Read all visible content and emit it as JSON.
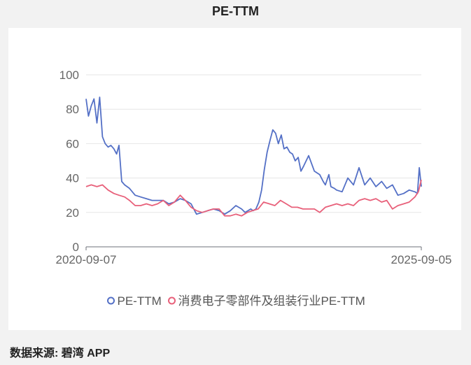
{
  "page": {
    "title": "PE-TTM",
    "source_label": "数据来源: 碧湾 APP"
  },
  "colors": {
    "pe": "#5470c6",
    "industry": "#e8607a",
    "grid": "#e6e6e6",
    "axis": "#6e7079"
  },
  "chart_data": {
    "type": "line",
    "title": "PE-TTM",
    "x_start": "2020-09-07",
    "x_end": "2025-09-05",
    "x_tick_labels": [
      "2020-09-07",
      "2025-09-05"
    ],
    "ylim": [
      0,
      100
    ],
    "y_ticks": [
      0,
      20,
      40,
      60,
      80,
      100
    ],
    "grid": true,
    "legend_position": "bottom",
    "series": [
      {
        "name": "PE-TTM",
        "color": "#5470c6",
        "x": [
          "2020-09-07",
          "2020-09-20",
          "2020-10-05",
          "2020-10-20",
          "2020-11-05",
          "2020-11-20",
          "2020-12-05",
          "2020-12-20",
          "2021-01-05",
          "2021-01-20",
          "2021-02-05",
          "2021-02-20",
          "2021-03-05",
          "2021-03-20",
          "2021-04-05",
          "2021-05-01",
          "2021-06-01",
          "2021-07-01",
          "2021-08-01",
          "2021-09-01",
          "2021-10-01",
          "2021-11-01",
          "2021-12-01",
          "2022-01-01",
          "2022-02-01",
          "2022-03-01",
          "2022-04-01",
          "2022-05-01",
          "2022-06-01",
          "2022-07-01",
          "2022-08-01",
          "2022-09-01",
          "2022-10-01",
          "2022-11-01",
          "2022-12-01",
          "2023-01-01",
          "2023-01-20",
          "2023-02-05",
          "2023-02-20",
          "2023-03-05",
          "2023-03-20",
          "2023-04-05",
          "2023-04-20",
          "2023-05-05",
          "2023-05-20",
          "2023-06-05",
          "2023-06-20",
          "2023-07-05",
          "2023-07-20",
          "2023-08-05",
          "2023-08-20",
          "2023-09-05",
          "2023-09-20",
          "2023-10-05",
          "2023-10-20",
          "2023-11-05",
          "2023-11-20",
          "2023-12-05",
          "2024-01-01",
          "2024-02-01",
          "2024-03-01",
          "2024-03-20",
          "2024-04-01",
          "2024-04-20",
          "2024-05-01",
          "2024-05-20",
          "2024-06-01",
          "2024-07-01",
          "2024-08-01",
          "2024-09-01",
          "2024-10-01",
          "2024-11-01",
          "2024-12-01",
          "2025-01-01",
          "2025-02-01",
          "2025-03-01",
          "2025-04-01",
          "2025-05-01",
          "2025-06-01",
          "2025-07-01",
          "2025-08-01",
          "2025-08-15",
          "2025-08-25",
          "2025-09-05"
        ],
        "values": [
          86,
          76,
          82,
          86,
          72,
          87,
          64,
          60,
          58,
          59,
          57,
          54,
          59,
          38,
          36,
          34,
          30,
          29,
          28,
          27,
          27,
          27,
          25,
          26,
          28,
          27,
          25,
          19,
          20,
          21,
          22,
          21,
          19,
          21,
          24,
          22,
          20,
          21,
          22,
          21,
          22,
          26,
          33,
          45,
          55,
          62,
          68,
          66,
          60,
          65,
          57,
          58,
          55,
          54,
          50,
          52,
          44,
          47,
          53,
          44,
          42,
          38,
          36,
          42,
          35,
          34,
          33,
          32,
          40,
          36,
          46,
          36,
          40,
          35,
          38,
          34,
          36,
          30,
          31,
          33,
          32,
          31,
          46,
          35
        ]
      },
      {
        "name": "消费电子零部件及组装行业PE-TTM",
        "color": "#e8607a",
        "x": [
          "2020-09-07",
          "2020-10-05",
          "2020-11-05",
          "2020-12-05",
          "2021-01-05",
          "2021-02-05",
          "2021-03-05",
          "2021-04-05",
          "2021-05-01",
          "2021-06-01",
          "2021-07-01",
          "2021-08-01",
          "2021-09-01",
          "2021-10-01",
          "2021-11-01",
          "2021-12-01",
          "2022-01-01",
          "2022-02-01",
          "2022-03-01",
          "2022-04-01",
          "2022-05-01",
          "2022-06-01",
          "2022-07-01",
          "2022-08-01",
          "2022-09-01",
          "2022-10-01",
          "2022-11-01",
          "2022-12-01",
          "2023-01-01",
          "2023-02-01",
          "2023-03-01",
          "2023-04-01",
          "2023-05-01",
          "2023-06-01",
          "2023-07-01",
          "2023-08-01",
          "2023-09-01",
          "2023-10-01",
          "2023-11-01",
          "2023-12-01",
          "2024-01-01",
          "2024-02-01",
          "2024-03-01",
          "2024-04-01",
          "2024-05-01",
          "2024-06-01",
          "2024-07-01",
          "2024-08-01",
          "2024-09-01",
          "2024-10-01",
          "2024-11-01",
          "2024-12-01",
          "2025-01-01",
          "2025-02-01",
          "2025-03-01",
          "2025-04-01",
          "2025-05-01",
          "2025-06-01",
          "2025-07-01",
          "2025-08-01",
          "2025-08-20",
          "2025-09-05"
        ],
        "values": [
          35,
          36,
          35,
          36,
          33,
          31,
          30,
          29,
          27,
          24,
          24,
          25,
          24,
          25,
          27,
          24,
          26,
          30,
          27,
          23,
          21,
          20,
          21,
          22,
          22,
          18,
          18,
          19,
          18,
          20,
          21,
          22,
          26,
          25,
          24,
          27,
          25,
          23,
          23,
          22,
          22,
          22,
          20,
          23,
          24,
          25,
          24,
          25,
          24,
          27,
          28,
          27,
          28,
          26,
          27,
          22,
          24,
          25,
          26,
          29,
          32,
          39
        ]
      }
    ]
  }
}
